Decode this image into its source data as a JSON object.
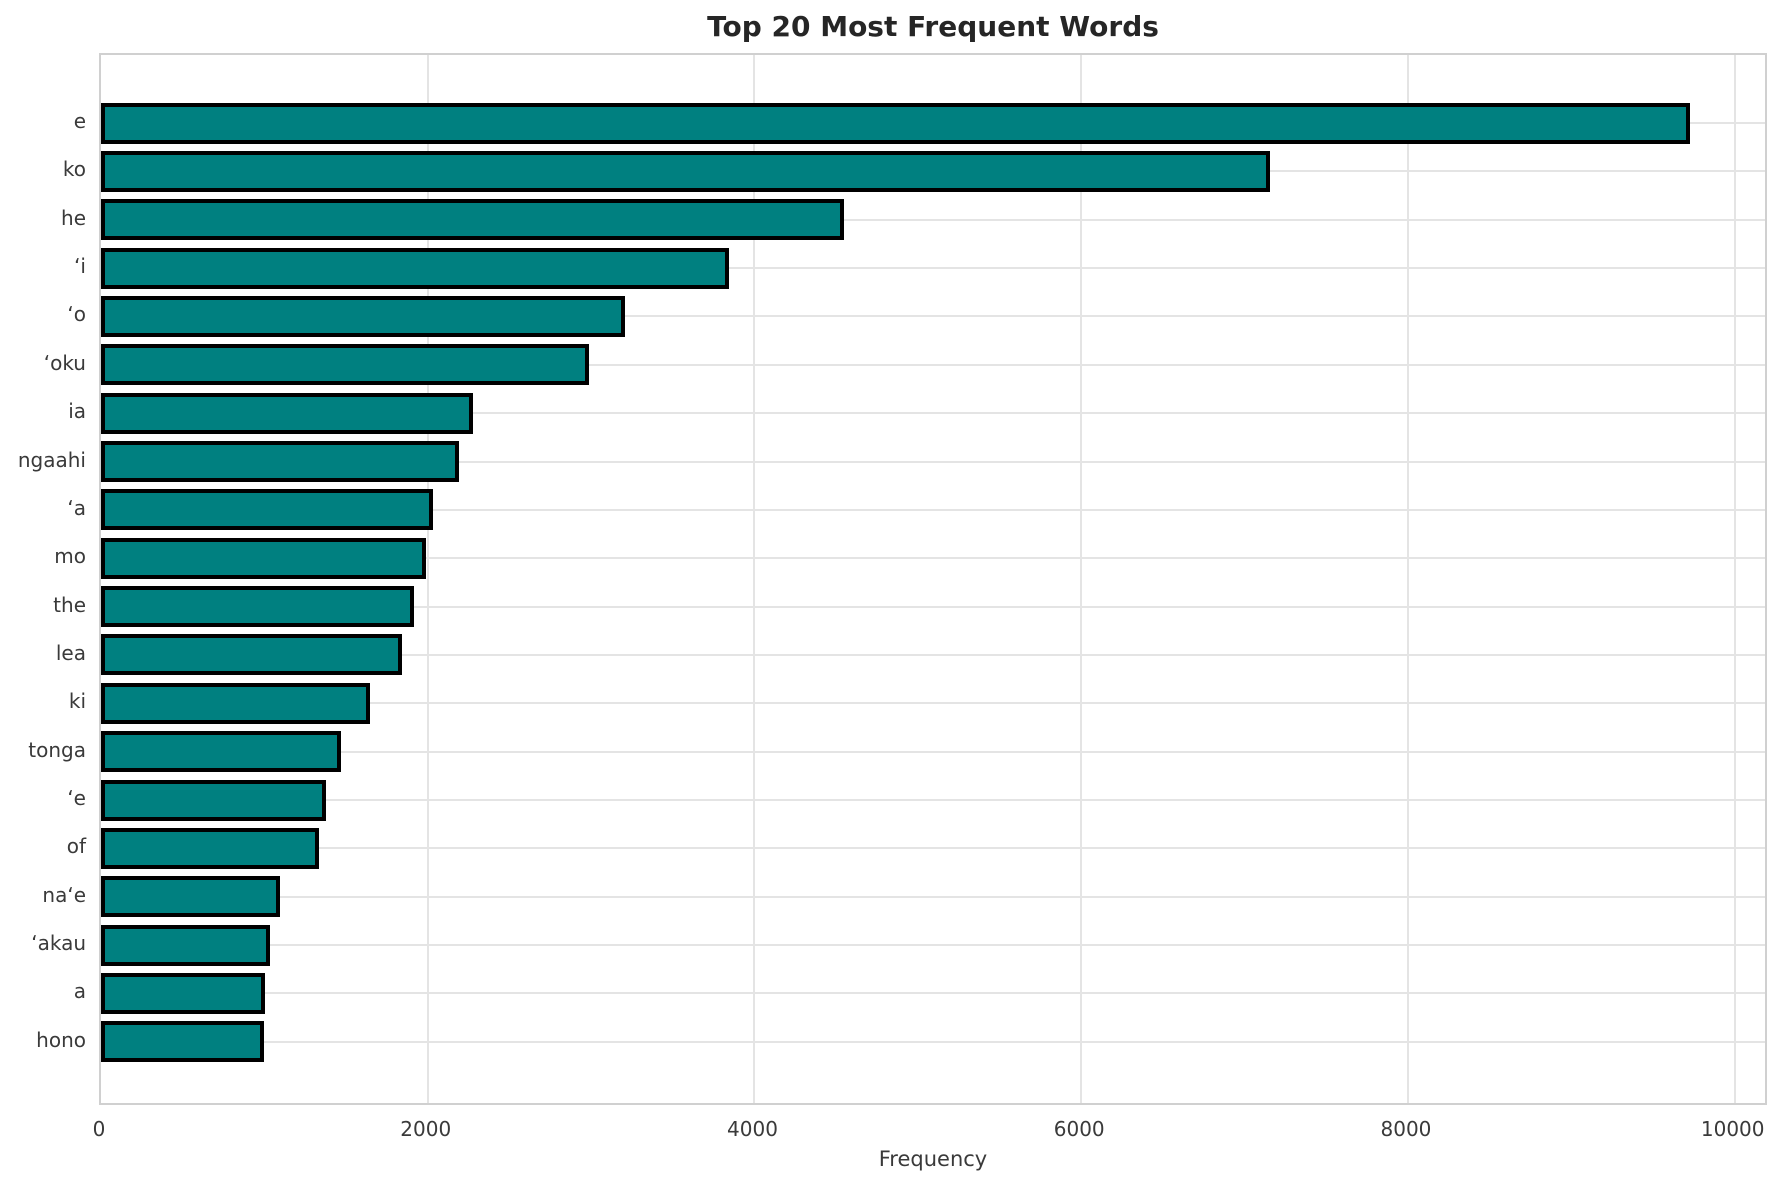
{
  "chart_data": {
    "type": "bar",
    "orientation": "horizontal",
    "title": "Top 20 Most Frequent Words",
    "xlabel": "Frequency",
    "ylabel": "",
    "categories": [
      "e",
      "ko",
      "he",
      "‘i",
      "‘o",
      "‘oku",
      "ia",
      "ngaahi",
      "‘a",
      "mo",
      "the",
      "lea",
      "ki",
      "tonga",
      "‘e",
      "of",
      "na‘e",
      "‘akau",
      "a",
      "hono"
    ],
    "values": [
      9725,
      7155,
      4545,
      3845,
      3205,
      2985,
      2280,
      2190,
      2035,
      1990,
      1915,
      1840,
      1645,
      1470,
      1380,
      1335,
      1095,
      1035,
      1005,
      1000
    ],
    "xticks": [
      0,
      2000,
      4000,
      6000,
      8000,
      10000
    ],
    "xlim": [
      0,
      10210
    ],
    "grid": true,
    "legend_position": "none",
    "colors": {
      "bar_fill": "#008080",
      "bar_edge": "#000000",
      "grid": "#e4e4e4",
      "spine": "#d0d0d0",
      "title_text": "#262626",
      "tick_text": "#3a3a3a"
    }
  }
}
